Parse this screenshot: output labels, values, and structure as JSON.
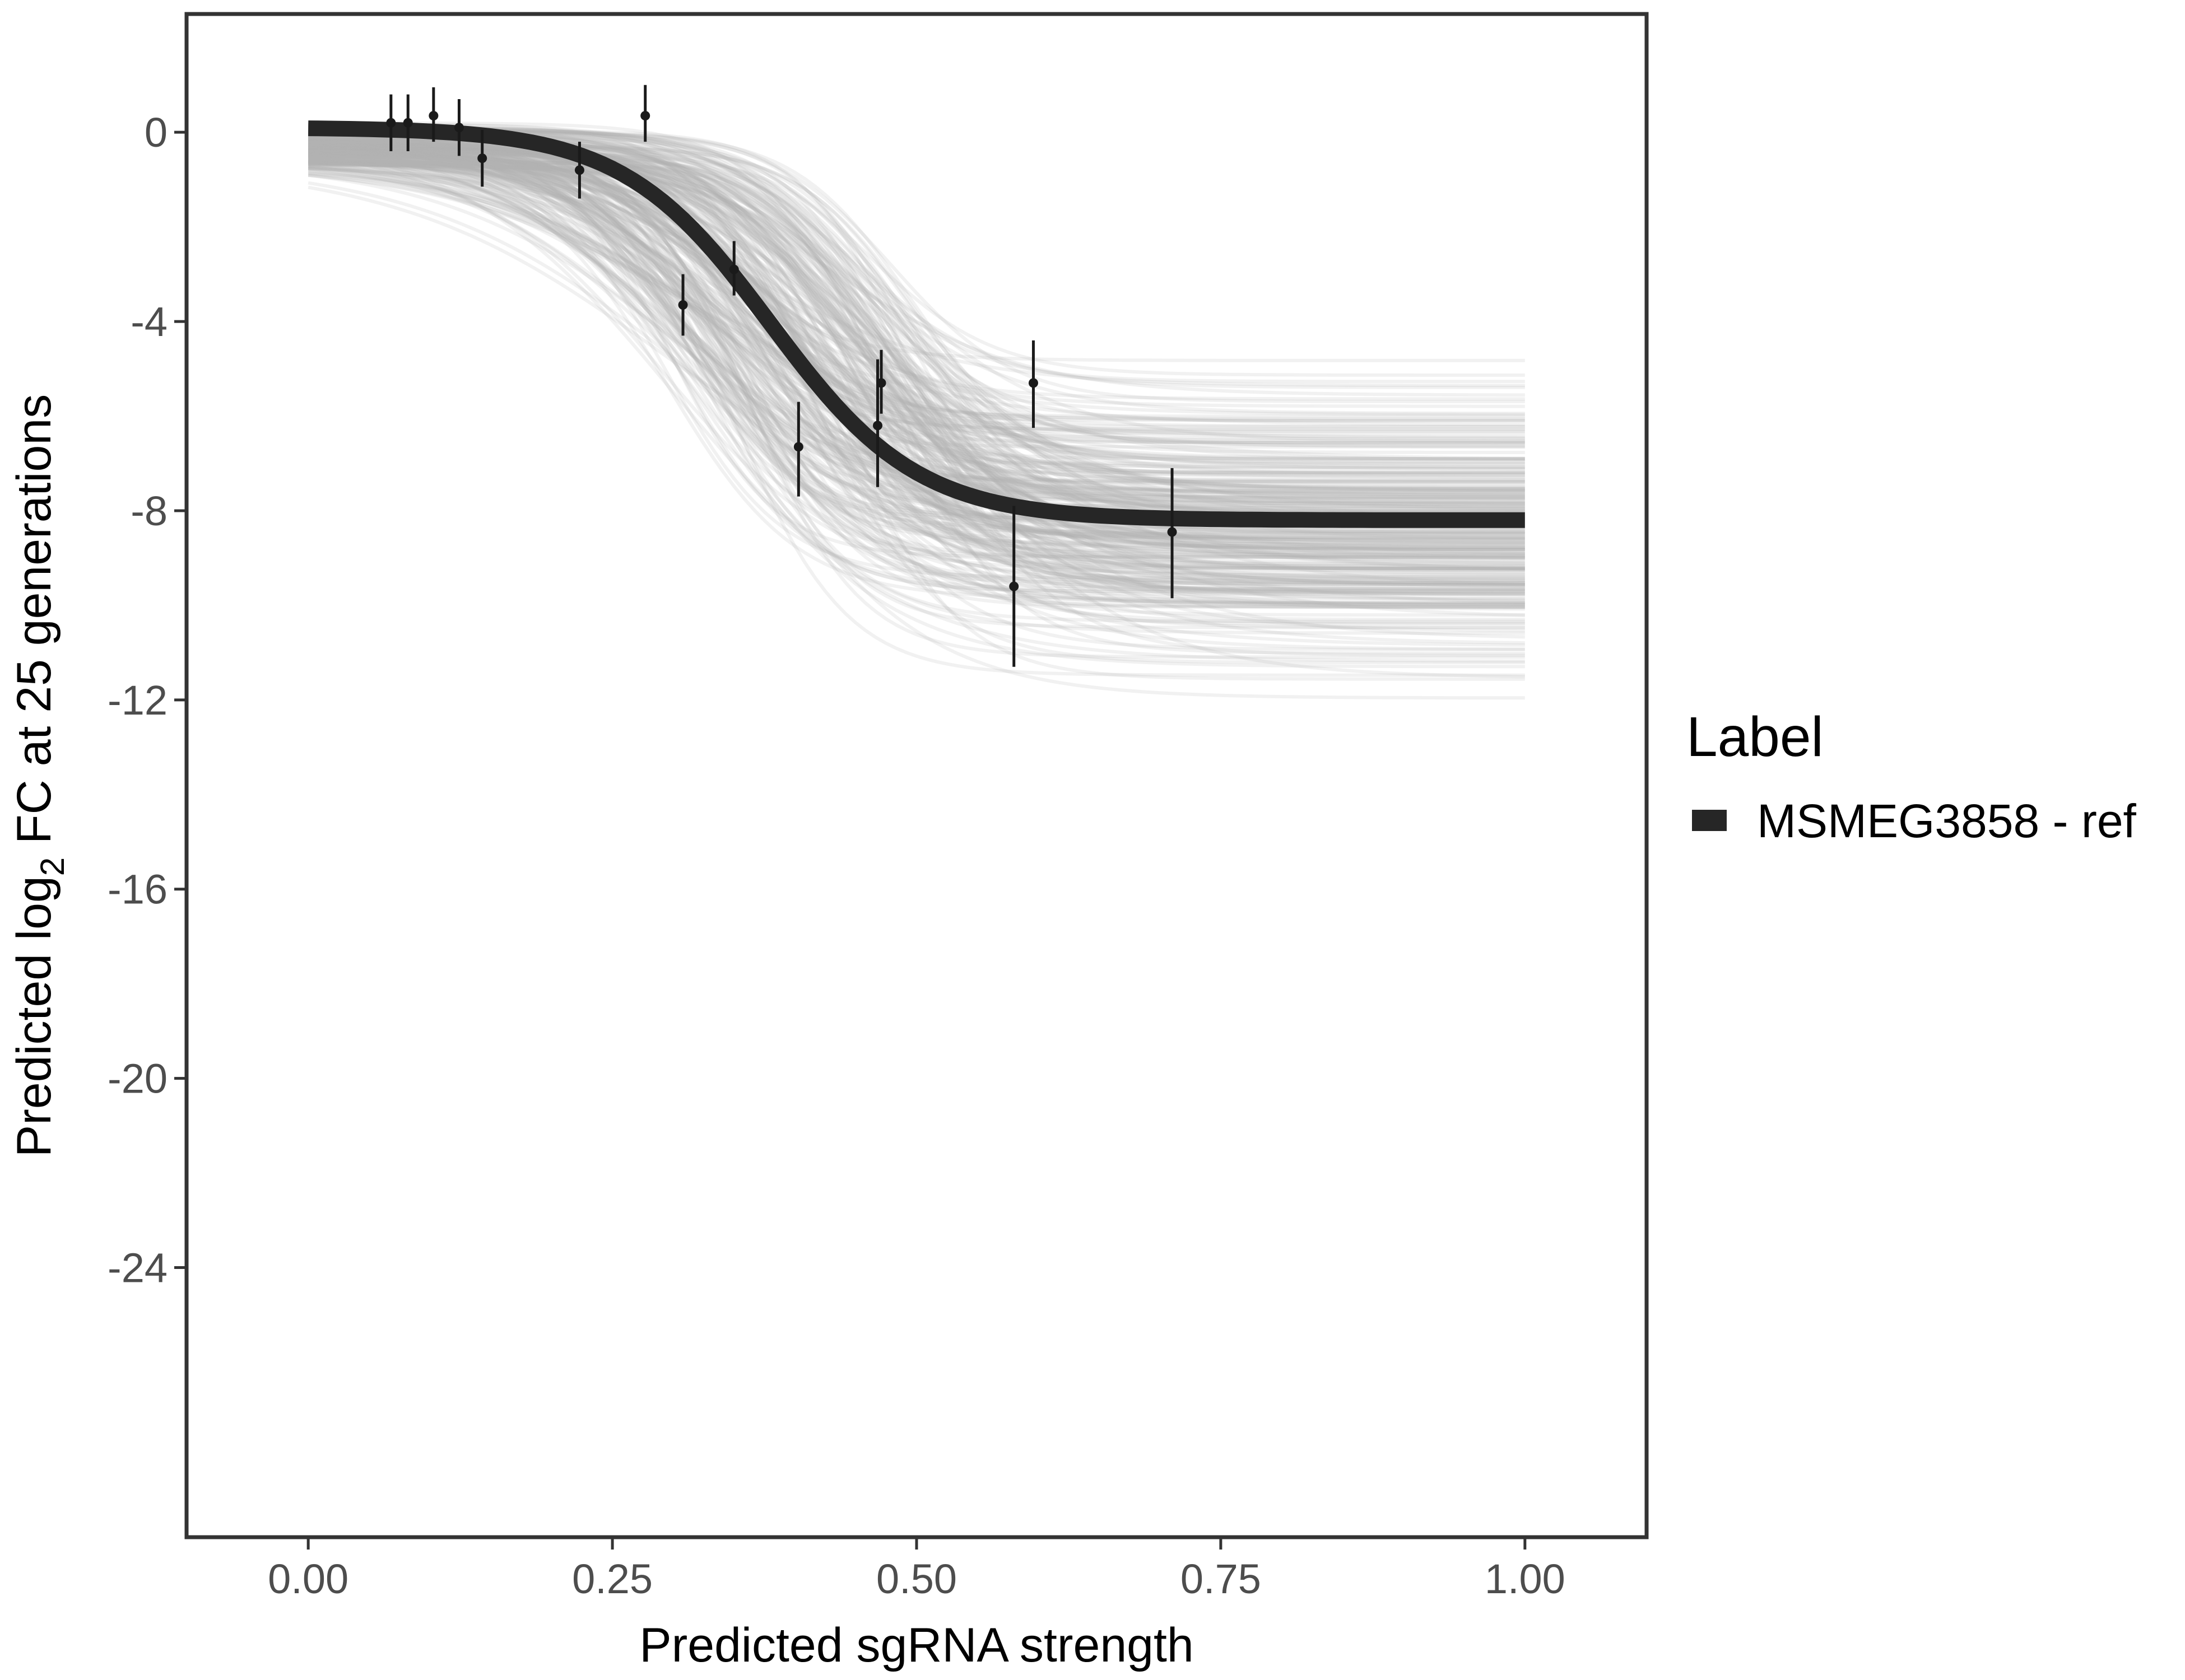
{
  "chart_data": {
    "type": "line",
    "xlabel": "Predicted sgRNA strength",
    "ylabel_prefix": "Predicted  log",
    "ylabel_sub": "2",
    "ylabel_suffix": " FC at 25 generations",
    "xlim": [
      -0.1,
      1.1
    ],
    "ylim": [
      -29.7,
      2.5
    ],
    "x_ticks": [
      0.0,
      0.25,
      0.5,
      0.75,
      1.0
    ],
    "x_tick_labels": [
      "0.00",
      "0.25",
      "0.50",
      "0.75",
      "1.00"
    ],
    "y_ticks": [
      0,
      -4,
      -8,
      -12,
      -16,
      -20,
      -24
    ],
    "y_tick_labels": [
      "0",
      "-4",
      "-8",
      "-12",
      "-16",
      "-20",
      "-24"
    ],
    "grid": false,
    "legend": {
      "title": "Label",
      "position": "right",
      "entries": [
        {
          "label": "MSMEG3858 - ref",
          "color": "#262626"
        }
      ]
    },
    "fit_curve": {
      "name": "MSMEG3858 - ref",
      "model": "logistic",
      "top": 0.1,
      "bottom": -8.2,
      "midpoint": 0.38,
      "slope": 16.5,
      "color": "#262626"
    },
    "posterior_curves": {
      "count": 300,
      "color": "#b0b0b0",
      "bottom_range": [
        -12.5,
        -4.4
      ],
      "midpoint_range": [
        0.29,
        0.5
      ],
      "slope_range": [
        9,
        24
      ]
    },
    "points": [
      {
        "x": 0.068,
        "y": 0.2,
        "err_low": -0.4,
        "err_high": 0.8
      },
      {
        "x": 0.082,
        "y": 0.2,
        "err_low": -0.4,
        "err_high": 0.8
      },
      {
        "x": 0.103,
        "y": 0.35,
        "err_low": -0.2,
        "err_high": 0.95
      },
      {
        "x": 0.124,
        "y": 0.1,
        "err_low": -0.5,
        "err_high": 0.7
      },
      {
        "x": 0.143,
        "y": -0.55,
        "err_low": -1.15,
        "err_high": 0.05
      },
      {
        "x": 0.223,
        "y": -0.8,
        "err_low": -1.4,
        "err_high": -0.2
      },
      {
        "x": 0.277,
        "y": 0.35,
        "err_low": -0.2,
        "err_high": 1.0
      },
      {
        "x": 0.308,
        "y": -3.65,
        "err_low": -4.3,
        "err_high": -3.0
      },
      {
        "x": 0.35,
        "y": -2.9,
        "err_low": -3.45,
        "err_high": -2.3
      },
      {
        "x": 0.403,
        "y": -6.65,
        "err_low": -7.7,
        "err_high": -5.7
      },
      {
        "x": 0.468,
        "y": -6.2,
        "err_low": -7.5,
        "err_high": -4.8
      },
      {
        "x": 0.471,
        "y": -5.3,
        "err_low": -5.95,
        "err_high": -4.6
      },
      {
        "x": 0.58,
        "y": -9.6,
        "err_low": -11.3,
        "err_high": -7.9
      },
      {
        "x": 0.596,
        "y": -5.3,
        "err_low": -6.25,
        "err_high": -4.4
      },
      {
        "x": 0.71,
        "y": -8.45,
        "err_low": -9.85,
        "err_high": -7.1
      }
    ]
  }
}
